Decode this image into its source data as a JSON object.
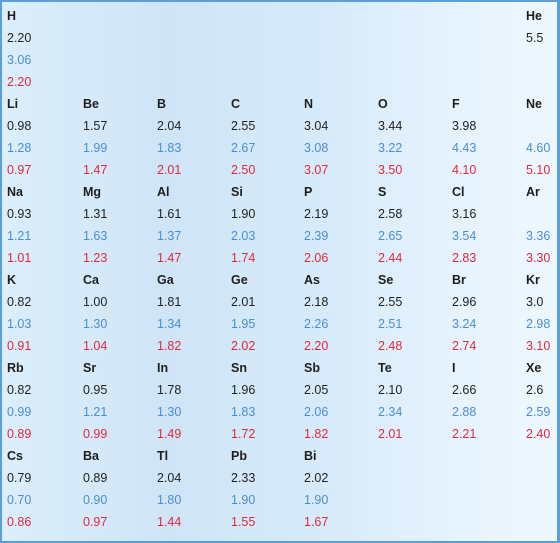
{
  "colors": {
    "scale_1": "#222222",
    "scale_2": "#4a8ed0",
    "scale_3": "#e0283c"
  },
  "blocks": [
    {
      "cells": [
        {
          "symbol": "H",
          "values": [
            "2.20",
            "3.06",
            "2.20"
          ]
        },
        null,
        null,
        null,
        null,
        null,
        null,
        {
          "symbol": "He",
          "values": [
            "5.5",
            "",
            ""
          ]
        }
      ]
    },
    {
      "cells": [
        {
          "symbol": "Li",
          "values": [
            "0.98",
            "1.28",
            "0.97"
          ]
        },
        {
          "symbol": "Be",
          "values": [
            "1.57",
            "1.99",
            "1.47"
          ]
        },
        {
          "symbol": "B",
          "values": [
            "2.04",
            "1.83",
            "2.01"
          ]
        },
        {
          "symbol": "C",
          "values": [
            "2.55",
            "2.67",
            "2.50"
          ]
        },
        {
          "symbol": "N",
          "values": [
            "3.04",
            "3.08",
            "3.07"
          ]
        },
        {
          "symbol": "O",
          "values": [
            "3.44",
            "3.22",
            "3.50"
          ]
        },
        {
          "symbol": "F",
          "values": [
            "3.98",
            "4.43",
            "4.10"
          ]
        },
        {
          "symbol": "Ne",
          "values": [
            "",
            "4.60",
            "5.10"
          ]
        }
      ]
    },
    {
      "cells": [
        {
          "symbol": "Na",
          "values": [
            "0.93",
            "1.21",
            "1.01"
          ]
        },
        {
          "symbol": "Mg",
          "values": [
            "1.31",
            "1.63",
            "1.23"
          ]
        },
        {
          "symbol": "Al",
          "values": [
            "1.61",
            "1.37",
            "1.47"
          ]
        },
        {
          "symbol": "Si",
          "values": [
            "1.90",
            "2.03",
            "1.74"
          ]
        },
        {
          "symbol": "P",
          "values": [
            "2.19",
            "2.39",
            "2.06"
          ]
        },
        {
          "symbol": "S",
          "values": [
            "2.58",
            "2.65",
            "2.44"
          ]
        },
        {
          "symbol": "Cl",
          "values": [
            "3.16",
            "3.54",
            "2.83"
          ]
        },
        {
          "symbol": "Ar",
          "values": [
            "",
            "3.36",
            "3.30"
          ]
        }
      ]
    },
    {
      "cells": [
        {
          "symbol": "K",
          "values": [
            "0.82",
            "1.03",
            "0.91"
          ]
        },
        {
          "symbol": "Ca",
          "values": [
            "1.00",
            "1.30",
            "1.04"
          ]
        },
        {
          "symbol": "Ga",
          "values": [
            "1.81",
            "1.34",
            "1.82"
          ]
        },
        {
          "symbol": "Ge",
          "values": [
            "2.01",
            "1.95",
            "2.02"
          ]
        },
        {
          "symbol": "As",
          "values": [
            "2.18",
            "2.26",
            "2.20"
          ]
        },
        {
          "symbol": "Se",
          "values": [
            "2.55",
            "2.51",
            "2.48"
          ]
        },
        {
          "symbol": "Br",
          "values": [
            "2.96",
            "3.24",
            "2.74"
          ]
        },
        {
          "symbol": "Kr",
          "values": [
            "3.0",
            "2.98",
            "3.10"
          ]
        }
      ]
    },
    {
      "cells": [
        {
          "symbol": "Rb",
          "values": [
            "0.82",
            "0.99",
            "0.89"
          ]
        },
        {
          "symbol": "Sr",
          "values": [
            "0.95",
            "1.21",
            "0.99"
          ]
        },
        {
          "symbol": "In",
          "values": [
            "1.78",
            "1.30",
            "1.49"
          ]
        },
        {
          "symbol": "Sn",
          "values": [
            "1.96",
            "1.83",
            "1.72"
          ]
        },
        {
          "symbol": "Sb",
          "values": [
            "2.05",
            "2.06",
            "1.82"
          ]
        },
        {
          "symbol": "Te",
          "values": [
            "2.10",
            "2.34",
            "2.01"
          ]
        },
        {
          "symbol": "I",
          "values": [
            "2.66",
            "2.88",
            "2.21"
          ]
        },
        {
          "symbol": "Xe",
          "values": [
            "2.6",
            "2.59",
            "2.40"
          ]
        }
      ]
    },
    {
      "cells": [
        {
          "symbol": "Cs",
          "values": [
            "0.79",
            "0.70",
            "0.86"
          ]
        },
        {
          "symbol": "Ba",
          "values": [
            "0.89",
            "0.90",
            "0.97"
          ]
        },
        {
          "symbol": "Tl",
          "values": [
            "2.04",
            "1.80",
            "1.44"
          ]
        },
        {
          "symbol": "Pb",
          "values": [
            "2.33",
            "1.90",
            "1.55"
          ]
        },
        {
          "symbol": "Bi",
          "values": [
            "2.02",
            "1.90",
            "1.67"
          ]
        },
        null,
        null,
        null
      ]
    }
  ]
}
